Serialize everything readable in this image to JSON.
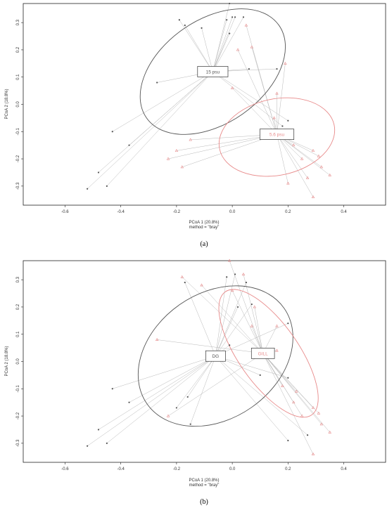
{
  "colors": {
    "group_a": "#555555",
    "group_b": "#e88a8a",
    "spider": "#b8b8b8",
    "frame": "#222222"
  },
  "panels": [
    {
      "panel_label": "(a)",
      "method_text": "method = \"bray\""
    },
    {
      "panel_label": "(b)",
      "method_text": "method = \"bray\""
    }
  ],
  "chart_data": [
    {
      "type": "scatter",
      "xlabel": "PCoA 1 (20.8%)",
      "ylabel": "PCoA 2 (18.8%)",
      "xlim": [
        -0.75,
        0.55
      ],
      "ylim": [
        -0.37,
        0.37
      ],
      "xticks": [
        "-0.6",
        "-0.4",
        "-0.2",
        "0.0",
        "0.2",
        "0.4"
      ],
      "yticks": [
        "-0.3",
        "-0.2",
        "-0.1",
        "0.0",
        "0.1",
        "0.2",
        "0.3"
      ],
      "grid": false,
      "groups": [
        {
          "name": "15 psu",
          "color": "#555555",
          "marker": "dot",
          "centroid": [
            -0.07,
            0.12
          ],
          "ellipse": {
            "cx": -0.07,
            "cy": 0.12,
            "rx": 0.29,
            "ry": 0.19,
            "angle": 35
          },
          "points": [
            [
              -0.52,
              -0.31
            ],
            [
              -0.48,
              -0.25
            ],
            [
              -0.45,
              -0.3
            ],
            [
              -0.43,
              -0.1
            ],
            [
              -0.37,
              -0.15
            ],
            [
              -0.27,
              0.08
            ],
            [
              -0.19,
              0.31
            ],
            [
              -0.17,
              0.29
            ],
            [
              -0.11,
              0.28
            ],
            [
              -0.02,
              0.31
            ],
            [
              -0.01,
              0.37
            ],
            [
              -0.01,
              0.26
            ],
            [
              0.0,
              0.32
            ],
            [
              0.01,
              0.32
            ],
            [
              0.04,
              0.32
            ],
            [
              0.06,
              0.13
            ],
            [
              0.16,
              0.13
            ],
            [
              0.18,
              -0.08
            ],
            [
              0.2,
              -0.06
            ]
          ]
        },
        {
          "name": "5.6 psu",
          "color": "#e88a8a",
          "marker": "triangle",
          "centroid": [
            0.16,
            -0.11
          ],
          "ellipse": {
            "cx": 0.16,
            "cy": -0.12,
            "rx": 0.21,
            "ry": 0.14,
            "angle": 12
          },
          "points": [
            [
              -0.23,
              -0.2
            ],
            [
              -0.2,
              -0.17
            ],
            [
              -0.18,
              -0.23
            ],
            [
              -0.15,
              -0.13
            ],
            [
              0.0,
              0.06
            ],
            [
              0.02,
              0.2
            ],
            [
              0.05,
              0.29
            ],
            [
              0.07,
              0.21
            ],
            [
              0.15,
              -0.05
            ],
            [
              0.16,
              0.04
            ],
            [
              0.19,
              0.15
            ],
            [
              0.2,
              -0.29
            ],
            [
              0.22,
              -0.15
            ],
            [
              0.25,
              -0.2
            ],
            [
              0.27,
              -0.27
            ],
            [
              0.29,
              -0.17
            ],
            [
              0.29,
              -0.34
            ],
            [
              0.31,
              -0.19
            ],
            [
              0.32,
              -0.23
            ],
            [
              0.35,
              -0.26
            ]
          ]
        }
      ]
    },
    {
      "type": "scatter",
      "xlabel": "PCoA 1 (20.8%)",
      "ylabel": "PCoA 2 (18.8%)",
      "xlim": [
        -0.75,
        0.55
      ],
      "ylim": [
        -0.37,
        0.37
      ],
      "xticks": [
        "-0.6",
        "-0.4",
        "-0.2",
        "0.0",
        "0.2",
        "0.4"
      ],
      "yticks": [
        "-0.3",
        "-0.2",
        "-0.1",
        "0.0",
        "0.1",
        "0.2",
        "0.3"
      ],
      "grid": false,
      "groups": [
        {
          "name": "DG",
          "color": "#555555",
          "marker": "dot",
          "centroid": [
            -0.06,
            0.02
          ],
          "ellipse": {
            "cx": -0.06,
            "cy": 0.02,
            "rx": 0.3,
            "ry": 0.23,
            "angle": 35
          },
          "points": [
            [
              -0.52,
              -0.31
            ],
            [
              -0.48,
              -0.25
            ],
            [
              -0.45,
              -0.3
            ],
            [
              -0.43,
              -0.1
            ],
            [
              -0.37,
              -0.15
            ],
            [
              -0.2,
              -0.17
            ],
            [
              -0.17,
              0.29
            ],
            [
              -0.16,
              -0.13
            ],
            [
              -0.15,
              -0.23
            ],
            [
              -0.02,
              0.31
            ],
            [
              -0.01,
              0.06
            ],
            [
              0.01,
              0.32
            ],
            [
              0.02,
              0.2
            ],
            [
              0.05,
              0.29
            ],
            [
              0.07,
              0.21
            ],
            [
              0.1,
              -0.05
            ],
            [
              0.2,
              -0.06
            ],
            [
              0.2,
              -0.29
            ],
            [
              0.27,
              -0.27
            ],
            [
              0.2,
              0.14
            ]
          ]
        },
        {
          "name": "GILL",
          "color": "#e88a8a",
          "marker": "triangle",
          "centroid": [
            0.11,
            0.03
          ],
          "ellipse": {
            "cx": 0.13,
            "cy": 0.03,
            "rx": 0.27,
            "ry": 0.11,
            "angle": -55
          },
          "points": [
            [
              -0.27,
              0.08
            ],
            [
              -0.23,
              -0.2
            ],
            [
              -0.18,
              0.31
            ],
            [
              -0.11,
              0.28
            ],
            [
              -0.01,
              0.37
            ],
            [
              0.0,
              0.26
            ],
            [
              0.04,
              0.32
            ],
            [
              0.07,
              0.13
            ],
            [
              0.08,
              0.2
            ],
            [
              0.16,
              0.13
            ],
            [
              0.16,
              0.04
            ],
            [
              0.18,
              -0.09
            ],
            [
              0.22,
              -0.15
            ],
            [
              0.23,
              -0.11
            ],
            [
              0.25,
              -0.2
            ],
            [
              0.29,
              -0.17
            ],
            [
              0.29,
              -0.34
            ],
            [
              0.31,
              -0.19
            ],
            [
              0.32,
              -0.23
            ],
            [
              0.35,
              -0.26
            ]
          ]
        }
      ]
    }
  ]
}
